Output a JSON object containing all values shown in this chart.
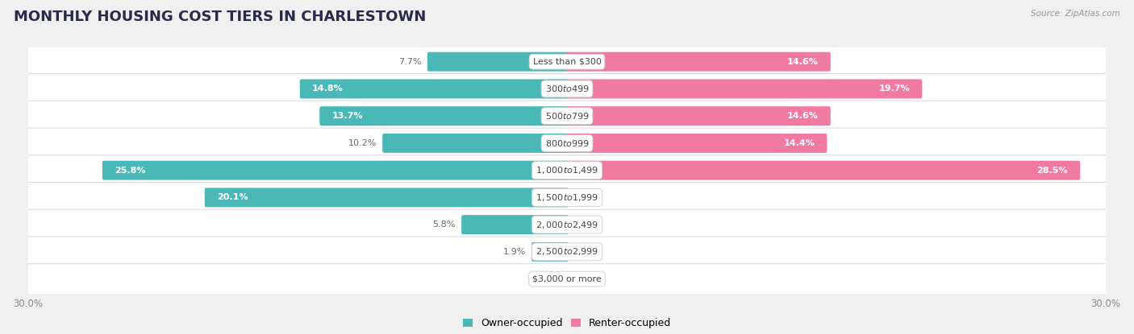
{
  "title": "MONTHLY HOUSING COST TIERS IN CHARLESTOWN",
  "source": "Source: ZipAtlas.com",
  "categories": [
    "Less than $300",
    "$300 to $499",
    "$500 to $799",
    "$800 to $999",
    "$1,000 to $1,499",
    "$1,500 to $1,999",
    "$2,000 to $2,499",
    "$2,500 to $2,999",
    "$3,000 or more"
  ],
  "owner_values": [
    7.7,
    14.8,
    13.7,
    10.2,
    25.8,
    20.1,
    5.8,
    1.9,
    0.0
  ],
  "renter_values": [
    14.6,
    19.7,
    14.6,
    14.4,
    28.5,
    0.0,
    0.0,
    0.0,
    0.0
  ],
  "owner_color": "#4bb8b8",
  "renter_color": "#f07aa0",
  "renter_color_light": "#f4a8c0",
  "axis_limit": 30.0,
  "background_color": "#f0f0f0",
  "row_bg_color": "#ffffff",
  "row_border_color": "#d8d8d8",
  "title_color": "#2a2a4a",
  "source_color": "#999999",
  "label_color_inside": "#ffffff",
  "label_color_outside": "#666666",
  "category_label_color": "#444444",
  "axis_label_color": "#888888",
  "legend_owner": "Owner-occupied",
  "legend_renter": "Renter-occupied",
  "title_fontsize": 13,
  "bar_fontsize": 8,
  "cat_fontsize": 8,
  "axis_fontsize": 8.5
}
